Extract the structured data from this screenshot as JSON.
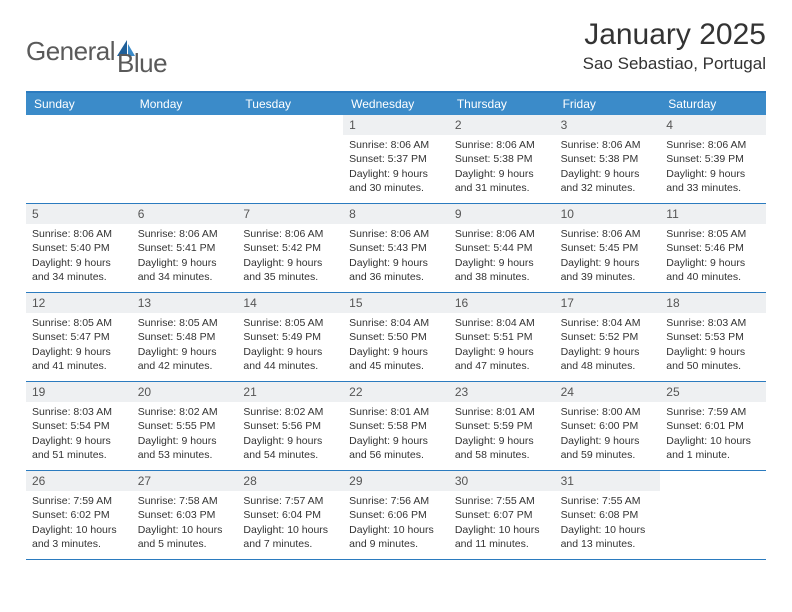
{
  "logo": {
    "general": "General",
    "blue": "Blue"
  },
  "title": "January 2025",
  "location": "Sao Sebastiao, Portugal",
  "colors": {
    "header_bg": "#3b8bc9",
    "header_border": "#2b7bbf",
    "day_number_bg": "#eef0f2",
    "text": "#333333",
    "logo_gray": "#5a5a5a",
    "logo_blue": "#2b7bbf"
  },
  "day_names": [
    "Sunday",
    "Monday",
    "Tuesday",
    "Wednesday",
    "Thursday",
    "Friday",
    "Saturday"
  ],
  "weeks": [
    [
      {
        "empty": true
      },
      {
        "empty": true
      },
      {
        "empty": true
      },
      {
        "n": "1",
        "sunrise": "Sunrise: 8:06 AM",
        "sunset": "Sunset: 5:37 PM",
        "daylight": "Daylight: 9 hours and 30 minutes."
      },
      {
        "n": "2",
        "sunrise": "Sunrise: 8:06 AM",
        "sunset": "Sunset: 5:38 PM",
        "daylight": "Daylight: 9 hours and 31 minutes."
      },
      {
        "n": "3",
        "sunrise": "Sunrise: 8:06 AM",
        "sunset": "Sunset: 5:38 PM",
        "daylight": "Daylight: 9 hours and 32 minutes."
      },
      {
        "n": "4",
        "sunrise": "Sunrise: 8:06 AM",
        "sunset": "Sunset: 5:39 PM",
        "daylight": "Daylight: 9 hours and 33 minutes."
      }
    ],
    [
      {
        "n": "5",
        "sunrise": "Sunrise: 8:06 AM",
        "sunset": "Sunset: 5:40 PM",
        "daylight": "Daylight: 9 hours and 34 minutes."
      },
      {
        "n": "6",
        "sunrise": "Sunrise: 8:06 AM",
        "sunset": "Sunset: 5:41 PM",
        "daylight": "Daylight: 9 hours and 34 minutes."
      },
      {
        "n": "7",
        "sunrise": "Sunrise: 8:06 AM",
        "sunset": "Sunset: 5:42 PM",
        "daylight": "Daylight: 9 hours and 35 minutes."
      },
      {
        "n": "8",
        "sunrise": "Sunrise: 8:06 AM",
        "sunset": "Sunset: 5:43 PM",
        "daylight": "Daylight: 9 hours and 36 minutes."
      },
      {
        "n": "9",
        "sunrise": "Sunrise: 8:06 AM",
        "sunset": "Sunset: 5:44 PM",
        "daylight": "Daylight: 9 hours and 38 minutes."
      },
      {
        "n": "10",
        "sunrise": "Sunrise: 8:06 AM",
        "sunset": "Sunset: 5:45 PM",
        "daylight": "Daylight: 9 hours and 39 minutes."
      },
      {
        "n": "11",
        "sunrise": "Sunrise: 8:05 AM",
        "sunset": "Sunset: 5:46 PM",
        "daylight": "Daylight: 9 hours and 40 minutes."
      }
    ],
    [
      {
        "n": "12",
        "sunrise": "Sunrise: 8:05 AM",
        "sunset": "Sunset: 5:47 PM",
        "daylight": "Daylight: 9 hours and 41 minutes."
      },
      {
        "n": "13",
        "sunrise": "Sunrise: 8:05 AM",
        "sunset": "Sunset: 5:48 PM",
        "daylight": "Daylight: 9 hours and 42 minutes."
      },
      {
        "n": "14",
        "sunrise": "Sunrise: 8:05 AM",
        "sunset": "Sunset: 5:49 PM",
        "daylight": "Daylight: 9 hours and 44 minutes."
      },
      {
        "n": "15",
        "sunrise": "Sunrise: 8:04 AM",
        "sunset": "Sunset: 5:50 PM",
        "daylight": "Daylight: 9 hours and 45 minutes."
      },
      {
        "n": "16",
        "sunrise": "Sunrise: 8:04 AM",
        "sunset": "Sunset: 5:51 PM",
        "daylight": "Daylight: 9 hours and 47 minutes."
      },
      {
        "n": "17",
        "sunrise": "Sunrise: 8:04 AM",
        "sunset": "Sunset: 5:52 PM",
        "daylight": "Daylight: 9 hours and 48 minutes."
      },
      {
        "n": "18",
        "sunrise": "Sunrise: 8:03 AM",
        "sunset": "Sunset: 5:53 PM",
        "daylight": "Daylight: 9 hours and 50 minutes."
      }
    ],
    [
      {
        "n": "19",
        "sunrise": "Sunrise: 8:03 AM",
        "sunset": "Sunset: 5:54 PM",
        "daylight": "Daylight: 9 hours and 51 minutes."
      },
      {
        "n": "20",
        "sunrise": "Sunrise: 8:02 AM",
        "sunset": "Sunset: 5:55 PM",
        "daylight": "Daylight: 9 hours and 53 minutes."
      },
      {
        "n": "21",
        "sunrise": "Sunrise: 8:02 AM",
        "sunset": "Sunset: 5:56 PM",
        "daylight": "Daylight: 9 hours and 54 minutes."
      },
      {
        "n": "22",
        "sunrise": "Sunrise: 8:01 AM",
        "sunset": "Sunset: 5:58 PM",
        "daylight": "Daylight: 9 hours and 56 minutes."
      },
      {
        "n": "23",
        "sunrise": "Sunrise: 8:01 AM",
        "sunset": "Sunset: 5:59 PM",
        "daylight": "Daylight: 9 hours and 58 minutes."
      },
      {
        "n": "24",
        "sunrise": "Sunrise: 8:00 AM",
        "sunset": "Sunset: 6:00 PM",
        "daylight": "Daylight: 9 hours and 59 minutes."
      },
      {
        "n": "25",
        "sunrise": "Sunrise: 7:59 AM",
        "sunset": "Sunset: 6:01 PM",
        "daylight": "Daylight: 10 hours and 1 minute."
      }
    ],
    [
      {
        "n": "26",
        "sunrise": "Sunrise: 7:59 AM",
        "sunset": "Sunset: 6:02 PM",
        "daylight": "Daylight: 10 hours and 3 minutes."
      },
      {
        "n": "27",
        "sunrise": "Sunrise: 7:58 AM",
        "sunset": "Sunset: 6:03 PM",
        "daylight": "Daylight: 10 hours and 5 minutes."
      },
      {
        "n": "28",
        "sunrise": "Sunrise: 7:57 AM",
        "sunset": "Sunset: 6:04 PM",
        "daylight": "Daylight: 10 hours and 7 minutes."
      },
      {
        "n": "29",
        "sunrise": "Sunrise: 7:56 AM",
        "sunset": "Sunset: 6:06 PM",
        "daylight": "Daylight: 10 hours and 9 minutes."
      },
      {
        "n": "30",
        "sunrise": "Sunrise: 7:55 AM",
        "sunset": "Sunset: 6:07 PM",
        "daylight": "Daylight: 10 hours and 11 minutes."
      },
      {
        "n": "31",
        "sunrise": "Sunrise: 7:55 AM",
        "sunset": "Sunset: 6:08 PM",
        "daylight": "Daylight: 10 hours and 13 minutes."
      },
      {
        "empty": true
      }
    ]
  ]
}
